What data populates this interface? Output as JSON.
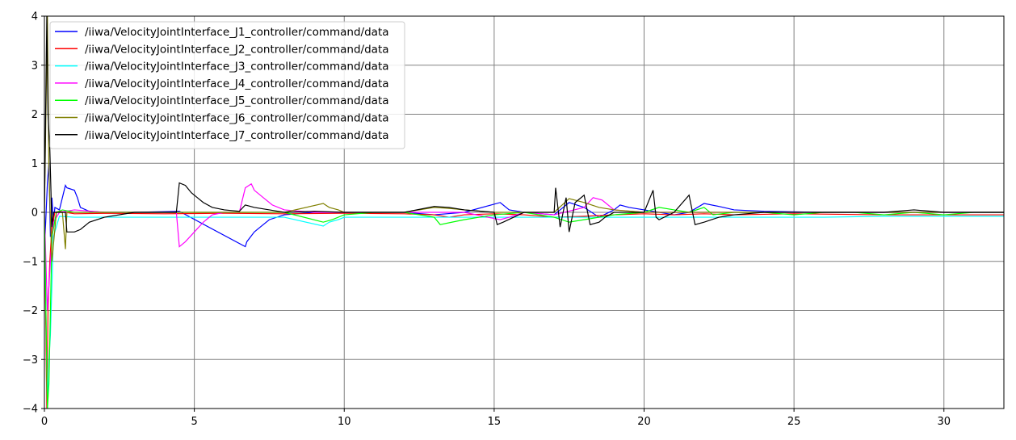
{
  "chart_data": {
    "type": "line",
    "title": "",
    "xlabel": "",
    "ylabel": "",
    "xlim": [
      0,
      32
    ],
    "ylim": [
      -4,
      4
    ],
    "xticks": [
      0,
      5,
      10,
      15,
      20,
      25,
      30
    ],
    "yticks": [
      -4,
      -3,
      -2,
      -1,
      0,
      1,
      2,
      3,
      4
    ],
    "xtick_labels": [
      "0",
      "5",
      "10",
      "15",
      "20",
      "25",
      "30"
    ],
    "ytick_labels": [
      "−4",
      "−3",
      "−2",
      "−1",
      "0",
      "1",
      "2",
      "3",
      "4"
    ],
    "grid": true,
    "legend_position": "top-left",
    "series": [
      {
        "name": "/iiwa/VelocityJointInterface_J1_controller/command/data",
        "color": "#0000ff",
        "x": [
          0.0,
          0.1,
          0.15,
          0.2,
          0.25,
          0.3,
          0.35,
          0.5,
          0.7,
          0.75,
          1.0,
          1.1,
          1.2,
          1.5,
          2.0,
          3.0,
          4.5,
          6.7,
          6.75,
          7.0,
          7.2,
          7.5,
          8.0,
          9.0,
          10.0,
          12.0,
          13.0,
          14.0,
          15.2,
          15.3,
          15.5,
          16.0,
          17.0,
          17.5,
          18.0,
          18.5,
          19.0,
          19.2,
          19.5,
          20.0,
          20.5,
          21.0,
          21.5,
          22.0,
          22.5,
          23.0,
          24.0,
          26.0,
          28.0,
          30.0,
          32.0
        ],
        "y": [
          -0.8,
          0.6,
          1.0,
          -0.5,
          0.3,
          -0.2,
          0.1,
          0.05,
          0.55,
          0.5,
          0.45,
          0.3,
          0.1,
          0.02,
          0.0,
          0.0,
          0.02,
          -0.7,
          -0.6,
          -0.4,
          -0.3,
          -0.15,
          -0.05,
          0.0,
          0.0,
          0.0,
          -0.05,
          0.0,
          0.2,
          0.15,
          0.05,
          0.0,
          -0.05,
          0.2,
          0.1,
          -0.1,
          0.05,
          0.15,
          0.1,
          0.05,
          0.0,
          -0.05,
          0.0,
          0.18,
          0.12,
          0.05,
          0.02,
          0.0,
          0.0,
          0.0,
          0.0
        ]
      },
      {
        "name": "/iiwa/VelocityJointInterface_J2_controller/command/data",
        "color": "#ff0000",
        "x": [
          0.0,
          0.08,
          0.12,
          0.18,
          0.25,
          0.35,
          0.5,
          1.0,
          2.0,
          4.0,
          6.0,
          8.0,
          10.0,
          12.0,
          13.0,
          13.5,
          14.0,
          15.0,
          16.0,
          17.0,
          18.0,
          19.0,
          20.0,
          21.0,
          22.0,
          23.0,
          25.0,
          28.0,
          30.0,
          32.0
        ],
        "y": [
          0.0,
          -4.0,
          -2.0,
          -1.0,
          -0.3,
          0.0,
          0.02,
          -0.03,
          -0.02,
          -0.03,
          -0.02,
          -0.03,
          -0.02,
          -0.03,
          -0.05,
          -0.1,
          -0.05,
          -0.03,
          -0.05,
          -0.1,
          -0.08,
          -0.05,
          -0.03,
          -0.05,
          -0.03,
          -0.05,
          -0.03,
          -0.05,
          -0.05,
          -0.05
        ]
      },
      {
        "name": "/iiwa/VelocityJointInterface_J3_controller/command/data",
        "color": "#00ffff",
        "x": [
          0.0,
          0.1,
          0.15,
          0.2,
          0.3,
          0.5,
          1.0,
          2.0,
          4.0,
          6.0,
          8.0,
          9.3,
          9.5,
          9.8,
          10.0,
          12.0,
          14.0,
          16.0,
          18.0,
          20.0,
          22.0,
          24.0,
          26.0,
          28.0,
          30.0,
          32.0
        ],
        "y": [
          0.0,
          -4.0,
          -3.0,
          -2.5,
          -0.5,
          -0.08,
          -0.1,
          -0.1,
          -0.1,
          -0.1,
          -0.1,
          -0.28,
          -0.2,
          -0.15,
          -0.1,
          -0.1,
          -0.1,
          -0.1,
          -0.1,
          -0.1,
          -0.1,
          -0.1,
          -0.1,
          -0.08,
          -0.08,
          -0.08
        ]
      },
      {
        "name": "/iiwa/VelocityJointInterface_J4_controller/command/data",
        "color": "#ff00ff",
        "x": [
          0.0,
          0.1,
          0.2,
          0.3,
          0.5,
          1.0,
          2.0,
          3.0,
          4.4,
          4.5,
          4.7,
          5.0,
          5.3,
          5.6,
          6.0,
          6.5,
          6.7,
          6.9,
          7.0,
          7.3,
          7.6,
          8.0,
          9.0,
          10.0,
          12.0,
          14.0,
          15.2,
          15.5,
          16.0,
          17.0,
          18.0,
          18.3,
          18.6,
          19.0,
          20.0,
          21.0,
          22.0,
          24.0,
          26.0,
          28.0,
          30.0,
          32.0
        ],
        "y": [
          0.0,
          -2.0,
          -1.0,
          -0.2,
          0.0,
          0.05,
          0.0,
          0.0,
          0.0,
          -0.7,
          -0.6,
          -0.4,
          -0.2,
          -0.05,
          0.0,
          0.0,
          0.5,
          0.58,
          0.45,
          0.3,
          0.15,
          0.05,
          0.0,
          0.0,
          0.0,
          0.0,
          -0.15,
          -0.1,
          0.0,
          -0.05,
          0.1,
          0.3,
          0.25,
          0.05,
          0.0,
          0.0,
          0.0,
          0.0,
          0.0,
          0.0,
          0.0,
          0.0
        ]
      },
      {
        "name": "/iiwa/VelocityJointInterface_J5_controller/command/data",
        "color": "#00ff00",
        "x": [
          0.0,
          0.1,
          0.15,
          0.25,
          0.4,
          0.6,
          1.0,
          2.0,
          4.0,
          6.0,
          8.0,
          9.3,
          9.6,
          9.8,
          10.0,
          11.0,
          12.0,
          13.0,
          13.2,
          13.6,
          14.0,
          14.5,
          15.0,
          16.0,
          17.0,
          17.5,
          18.0,
          18.5,
          19.0,
          20.0,
          20.5,
          21.0,
          21.5,
          22.0,
          22.3,
          23.0,
          24.0,
          25.0,
          26.0,
          27.0,
          28.0,
          29.0,
          30.0,
          31.0,
          32.0
        ],
        "y": [
          0.0,
          -4.0,
          -3.5,
          -0.5,
          0.0,
          0.05,
          0.0,
          0.0,
          0.0,
          0.0,
          0.0,
          -0.2,
          -0.15,
          -0.1,
          -0.05,
          0.0,
          0.0,
          -0.1,
          -0.25,
          -0.2,
          -0.15,
          -0.1,
          -0.05,
          0.0,
          -0.1,
          -0.2,
          -0.15,
          -0.1,
          -0.05,
          0.0,
          0.1,
          0.05,
          0.0,
          0.1,
          -0.05,
          0.0,
          0.0,
          -0.05,
          0.0,
          0.0,
          -0.05,
          0.0,
          -0.05,
          0.0,
          0.0
        ]
      },
      {
        "name": "/iiwa/VelocityJointInterface_J6_controller/command/data",
        "color": "#808000",
        "x": [
          0.0,
          0.1,
          0.15,
          0.25,
          0.4,
          0.6,
          0.7,
          0.75,
          1.0,
          2.0,
          4.0,
          6.0,
          8.0,
          9.3,
          9.5,
          9.8,
          10.0,
          12.0,
          13.0,
          13.5,
          14.0,
          15.0,
          16.0,
          17.0,
          17.5,
          18.0,
          18.5,
          19.0,
          20.0,
          21.0,
          22.0,
          24.0,
          26.0,
          28.0,
          30.0,
          32.0
        ],
        "y": [
          0.0,
          4.0,
          0.8,
          -1.0,
          0.0,
          0.0,
          -0.75,
          0.0,
          0.0,
          0.0,
          0.0,
          0.0,
          0.0,
          0.18,
          0.1,
          0.05,
          0.0,
          0.0,
          0.1,
          0.08,
          0.05,
          0.0,
          0.0,
          0.0,
          0.28,
          0.2,
          0.1,
          0.05,
          0.0,
          0.0,
          0.0,
          0.0,
          0.0,
          0.0,
          0.0,
          0.0
        ]
      },
      {
        "name": "/iiwa/VelocityJointInterface_J7_controller/command/data",
        "color": "#000000",
        "x": [
          0.0,
          0.08,
          0.12,
          0.18,
          0.25,
          0.3,
          0.7,
          0.75,
          1.0,
          1.2,
          1.5,
          2.0,
          3.0,
          4.4,
          4.5,
          4.7,
          4.9,
          5.1,
          5.3,
          5.6,
          6.0,
          6.5,
          6.7,
          7.0,
          7.5,
          8.0,
          9.0,
          10.0,
          12.0,
          13.0,
          13.5,
          14.0,
          15.0,
          15.1,
          15.3,
          16.0,
          17.0,
          17.05,
          17.2,
          17.4,
          17.5,
          17.7,
          18.0,
          18.2,
          18.5,
          18.7,
          19.0,
          20.0,
          20.3,
          20.4,
          20.5,
          21.0,
          21.5,
          21.7,
          22.0,
          22.5,
          23.0,
          24.0,
          26.0,
          28.0,
          29.0,
          30.0,
          31.0,
          32.0
        ],
        "y": [
          0.0,
          4.0,
          2.0,
          1.3,
          -0.3,
          0.0,
          0.0,
          -0.4,
          -0.4,
          -0.35,
          -0.2,
          -0.1,
          0.0,
          0.0,
          0.6,
          0.55,
          0.4,
          0.3,
          0.2,
          0.1,
          0.05,
          0.02,
          0.15,
          0.1,
          0.05,
          0.0,
          0.02,
          0.0,
          0.0,
          0.12,
          0.1,
          0.05,
          0.0,
          -0.25,
          -0.2,
          0.0,
          0.0,
          0.5,
          -0.3,
          0.3,
          -0.4,
          0.2,
          0.35,
          -0.25,
          -0.2,
          -0.1,
          0.0,
          0.0,
          0.45,
          -0.1,
          -0.15,
          0.0,
          0.35,
          -0.25,
          -0.2,
          -0.1,
          -0.05,
          0.0,
          0.0,
          0.0,
          0.05,
          0.0,
          0.0,
          0.0
        ]
      }
    ]
  }
}
